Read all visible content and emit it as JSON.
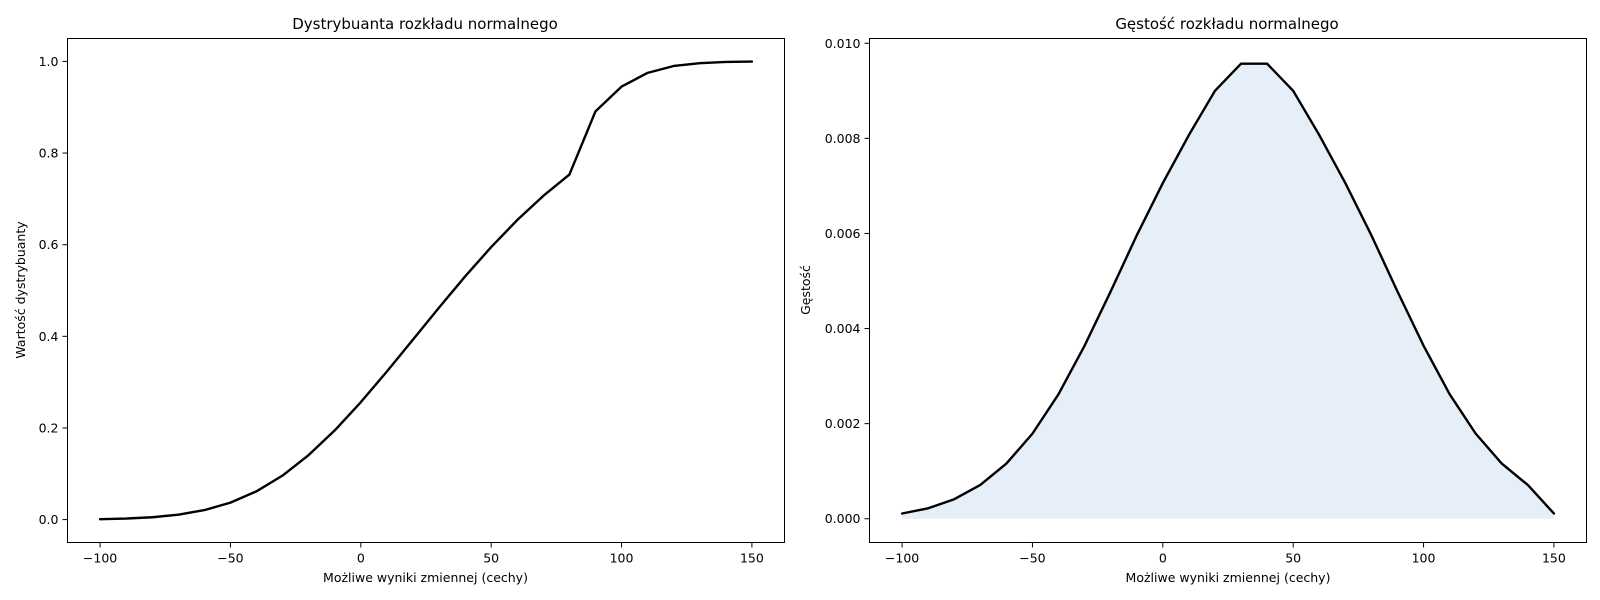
{
  "colors": {
    "line": "#000000",
    "fill": "#e6eff7",
    "background": "#ffffff"
  },
  "chart_data": [
    {
      "type": "line",
      "title": "Dystrybuanta rozkładu normalnego",
      "xlabel": "Możliwe wyniki zmiennej (cechy)",
      "ylabel": "Wartość dystrybuanty",
      "xlim": [
        -112.5,
        162.5
      ],
      "ylim": [
        -0.05,
        1.05
      ],
      "xticks": [
        -100,
        -50,
        0,
        50,
        100,
        150
      ],
      "xtick_labels": [
        "−100",
        "−50",
        "0",
        "50",
        "100",
        "150"
      ],
      "yticks": [
        0.0,
        0.2,
        0.4,
        0.6,
        0.8,
        1.0
      ],
      "ytick_labels": [
        "0.0",
        "0.2",
        "0.4",
        "0.6",
        "0.8",
        "1.0"
      ],
      "grid": false,
      "series": [
        {
          "x": [
            -100,
            -90,
            -80,
            -70,
            -60,
            -50,
            -40,
            -30,
            -20,
            -10,
            0,
            10,
            20,
            30,
            40,
            50,
            60,
            70,
            80,
            90,
            100,
            110,
            120,
            130,
            140,
            150
          ],
          "y": [
            0.0009,
            0.0023,
            0.0051,
            0.0107,
            0.0207,
            0.037,
            0.0617,
            0.0962,
            0.1409,
            0.1946,
            0.2563,
            0.3232,
            0.3927,
            0.4626,
            0.5307,
            0.5948,
            0.6538,
            0.7066,
            0.753,
            0.891,
            0.945,
            0.975,
            0.99,
            0.9962,
            0.9988,
            0.9996
          ]
        }
      ]
    },
    {
      "type": "area",
      "title": "Gęstość rozkładu normalnego",
      "xlabel": "Możliwe wyniki zmiennej (cechy)",
      "ylabel": "Gęstość",
      "xlim": [
        -112.5,
        162.5
      ],
      "ylim": [
        -0.0005,
        0.0101
      ],
      "xticks": [
        -100,
        -50,
        0,
        50,
        100,
        150
      ],
      "xtick_labels": [
        "−100",
        "−50",
        "0",
        "50",
        "100",
        "150"
      ],
      "yticks": [
        0.0,
        0.002,
        0.004,
        0.006,
        0.008,
        0.01
      ],
      "ytick_labels": [
        "0.000",
        "0.002",
        "0.004",
        "0.006",
        "0.008",
        "0.010"
      ],
      "grid": false,
      "series": [
        {
          "x": [
            -100,
            -90,
            -80,
            -70,
            -60,
            -50,
            -40,
            -30,
            -20,
            -10,
            0,
            10,
            20,
            30,
            40,
            50,
            60,
            70,
            80,
            90,
            100,
            110,
            120,
            130,
            140,
            150
          ],
          "y": [
            0.00011,
            0.00022,
            0.00041,
            0.00071,
            0.00116,
            0.00179,
            0.00262,
            0.00364,
            0.00478,
            0.00596,
            0.00706,
            0.00807,
            0.009,
            0.00957,
            0.00957,
            0.009,
            0.00807,
            0.00706,
            0.00596,
            0.00478,
            0.00364,
            0.00262,
            0.00179,
            0.00116,
            0.00071,
            0.00011
          ]
        }
      ]
    }
  ]
}
